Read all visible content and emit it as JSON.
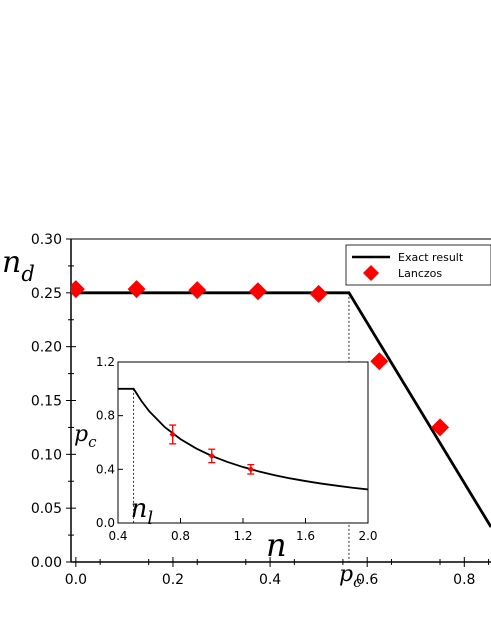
{
  "chart_data": [
    {
      "type": "line",
      "ylabel": "n_d",
      "ylabel_main": "n",
      "ylabel_sub": "d",
      "xlabel": "n",
      "xlim": [
        -0.01,
        0.855
      ],
      "ylim": [
        0.0,
        0.3
      ],
      "x_ticks": [
        0.0,
        0.2,
        0.4,
        0.6,
        0.8
      ],
      "x_tick_labels": [
        "0.0",
        "0.2",
        "0.4",
        "0.6",
        "0.8"
      ],
      "y_ticks": [
        0.0,
        0.05,
        0.1,
        0.15,
        0.2,
        0.25,
        0.3
      ],
      "y_tick_labels": [
        "0.00",
        "0.05",
        "0.10",
        "0.15",
        "0.20",
        "0.25",
        "0.30"
      ],
      "annotation_pc": {
        "x": 0.5625,
        "label_main": "p",
        "label_sub": "c"
      },
      "legend_position": "top-right",
      "series": [
        {
          "name": "Exact result",
          "style": "line",
          "color": "#000000",
          "x": [
            -0.01,
            0.5625,
            0.855
          ],
          "y": [
            0.25,
            0.25,
            0.0325
          ]
        },
        {
          "name": "Lanczos",
          "style": "marker-diamond",
          "color": "#ff0000",
          "x": [
            0.0,
            0.125,
            0.25,
            0.375,
            0.5,
            0.625,
            0.75
          ],
          "y": [
            0.2535,
            0.2535,
            0.2525,
            0.2515,
            0.249,
            0.1865,
            0.125
          ]
        }
      ]
    },
    {
      "type": "line",
      "inset": true,
      "ylabel_main": "p",
      "ylabel_sub": "c",
      "xlim": [
        0.4,
        2.0
      ],
      "ylim": [
        0.0,
        1.2
      ],
      "x_ticks": [
        0.4,
        0.8,
        1.2,
        1.6,
        2.0
      ],
      "x_tick_labels": [
        "0.4",
        "0.8",
        "1.2",
        "1.6",
        "2.0"
      ],
      "y_ticks": [
        0.0,
        0.4,
        0.8,
        1.2
      ],
      "y_tick_labels": [
        "0.0",
        "0.4",
        "0.8",
        "1.2"
      ],
      "annotation_nl": {
        "x": 0.5,
        "label_main": "n",
        "label_sub": "l"
      },
      "series": [
        {
          "style": "line",
          "color": "#000000",
          "x": [
            0.4,
            0.5,
            0.55,
            0.6,
            0.7,
            0.8,
            0.9,
            1.0,
            1.1,
            1.2,
            1.3,
            1.4,
            1.5,
            1.6,
            1.7,
            1.8,
            1.9,
            2.0
          ],
          "y": [
            1.0,
            1.0,
            0.909,
            0.833,
            0.714,
            0.625,
            0.556,
            0.5,
            0.455,
            0.417,
            0.385,
            0.357,
            0.333,
            0.3125,
            0.294,
            0.278,
            0.263,
            0.25
          ]
        },
        {
          "style": "marker-errorbar",
          "color": "#ff0000",
          "x": [
            0.75,
            1.0,
            1.25
          ],
          "y": [
            0.66,
            0.5,
            0.4
          ],
          "err": [
            0.07,
            0.05,
            0.035
          ]
        }
      ]
    }
  ],
  "colors": {
    "line": "#000000",
    "marker": "#ff0000"
  }
}
